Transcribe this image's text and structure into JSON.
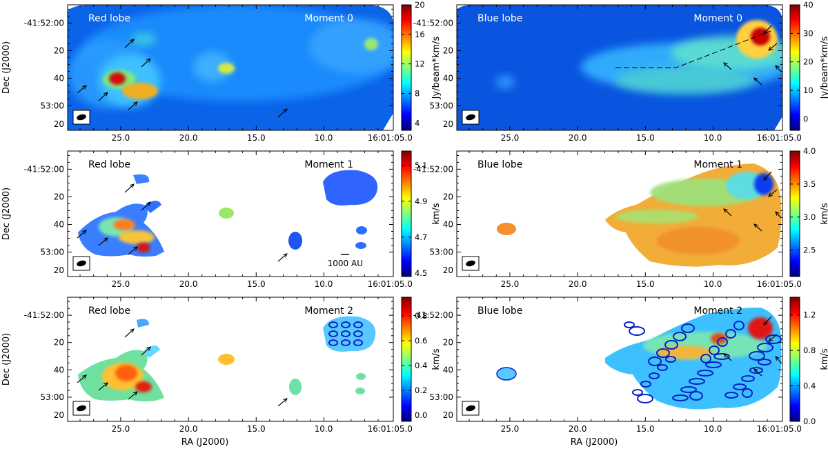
{
  "figure": {
    "xlabel": "RA (J2000)",
    "ylabel": "Dec (J2000)",
    "x_ticks": [
      "25.0",
      "20.0",
      "15.0",
      "10.0",
      "16:01:05.0"
    ],
    "y_ticks": [
      "-41:52:00",
      "20",
      "40",
      "53:00",
      "20"
    ]
  },
  "colors": {
    "jet": [
      "#00007f",
      "#0000ff",
      "#0080ff",
      "#00ffff",
      "#80ff80",
      "#ffff00",
      "#ff8000",
      "#ff0000",
      "#7f0000"
    ]
  },
  "chart_data": [
    {
      "type": "heatmap",
      "title": "Red lobe",
      "moment": "Moment 0",
      "side": "left",
      "xlabel": "",
      "ylabel": "Dec (J2000)",
      "colorbar": {
        "label": "Jy/beam*km/s",
        "ticks": [
          "20",
          "16",
          "12",
          "8",
          "4"
        ],
        "range": [
          3,
          20
        ]
      },
      "arrows": 7,
      "annotation": ""
    },
    {
      "type": "heatmap",
      "title": "Blue lobe",
      "moment": "Moment 0",
      "side": "right",
      "xlabel": "",
      "ylabel": "",
      "colorbar": {
        "label": "Jy/beam*km/s",
        "ticks": [
          "40",
          "30",
          "20",
          "10",
          "0"
        ],
        "range": [
          -4,
          40
        ]
      },
      "arrows": 5,
      "annotation": ""
    },
    {
      "type": "heatmap",
      "title": "Red lobe",
      "moment": "Moment 1",
      "side": "left",
      "xlabel": "",
      "ylabel": "Dec (J2000)",
      "colorbar": {
        "label": "km/s",
        "ticks": [
          "5.1",
          "4.9",
          "4.7",
          "4.5"
        ],
        "range": [
          4.48,
          5.18
        ]
      },
      "arrows": 7,
      "annotation": "1000 AU"
    },
    {
      "type": "heatmap",
      "title": "Blue lobe",
      "moment": "Moment 1",
      "side": "right",
      "xlabel": "",
      "ylabel": "",
      "colorbar": {
        "label": "km/s",
        "ticks": [
          "4.0",
          "3.5",
          "3.0",
          "2.5"
        ],
        "range": [
          2.1,
          4.0
        ]
      },
      "arrows": 5,
      "annotation": ""
    },
    {
      "type": "heatmap",
      "title": "Red lobe",
      "moment": "Moment 2",
      "side": "left",
      "xlabel": "RA (J2000)",
      "ylabel": "Dec (J2000)",
      "colorbar": {
        "label": "km/s",
        "ticks": [
          "0.8",
          "0.6",
          "0.4",
          "0.2",
          "0.0"
        ],
        "range": [
          -0.05,
          0.95
        ]
      },
      "arrows": 7,
      "annotation": ""
    },
    {
      "type": "heatmap",
      "title": "Blue lobe",
      "moment": "Moment 2",
      "side": "right",
      "xlabel": "RA (J2000)",
      "ylabel": "",
      "colorbar": {
        "label": "km/s",
        "ticks": [
          "1.2",
          "0.8",
          "0.4",
          "0.0"
        ],
        "range": [
          0,
          1.4
        ]
      },
      "arrows": 5,
      "annotation": ""
    }
  ]
}
